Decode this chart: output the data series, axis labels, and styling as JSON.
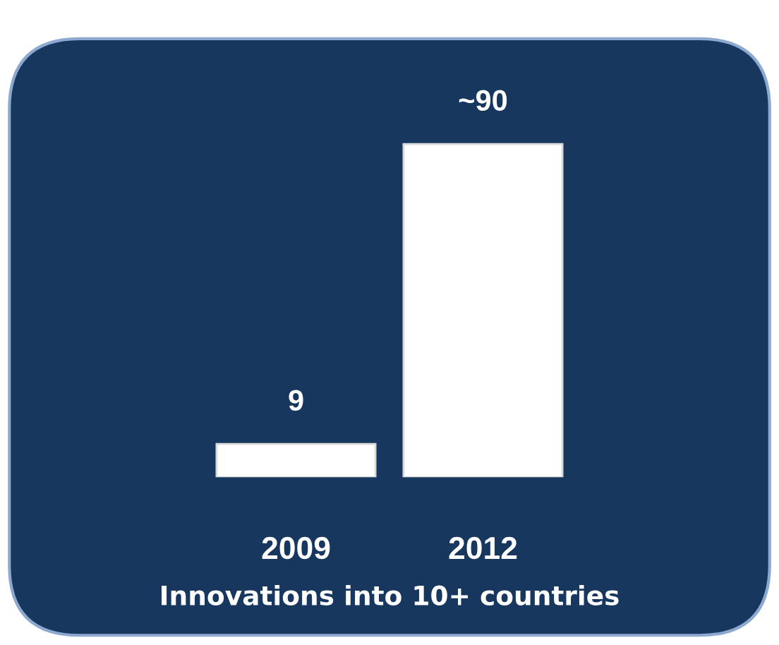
{
  "chart_data": {
    "type": "bar",
    "xlabel": "Innovations into 10+ countries",
    "categories": [
      "2009",
      "2012"
    ],
    "values": [
      9,
      90
    ],
    "value_labels": [
      "9",
      "~90"
    ],
    "color": "#ffffff"
  }
}
